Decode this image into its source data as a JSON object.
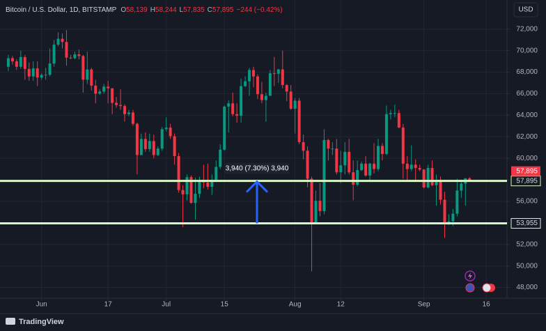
{
  "chart_data": {
    "type": "candlestick",
    "title": "Bitcoin / U.S. Dollar, 1D, BITSTAMP",
    "ohlc_labels": [
      {
        "key": "O",
        "value": "58,139"
      },
      {
        "key": "H",
        "value": "58,244"
      },
      {
        "key": "L",
        "value": "57,835"
      },
      {
        "key": "C",
        "value": "57,895"
      }
    ],
    "change_label": "−244 (−0.42%)",
    "currency": "USD",
    "brand": "TradingView",
    "x": [
      "May 24",
      "May 25",
      "May 26",
      "May 27",
      "May 28",
      "May 29",
      "May 30",
      "May 31",
      "Jun 1",
      "Jun 2",
      "Jun 3",
      "Jun 4",
      "Jun 5",
      "Jun 6",
      "Jun 7",
      "Jun 8",
      "Jun 9",
      "Jun 10",
      "Jun 11",
      "Jun 12",
      "Jun 13",
      "Jun 14",
      "Jun 15",
      "Jun 16",
      "Jun 17",
      "Jun 18",
      "Jun 19",
      "Jun 20",
      "Jun 21",
      "Jun 22",
      "Jun 23",
      "Jun 24",
      "Jun 25",
      "Jun 26",
      "Jun 27",
      "Jun 28",
      "Jun 29",
      "Jun 30",
      "Jul 1",
      "Jul 2",
      "Jul 3",
      "Jul 4",
      "Jul 5",
      "Jul 6",
      "Jul 7",
      "Jul 8",
      "Jul 9",
      "Jul 10",
      "Jul 11",
      "Jul 12",
      "Jul 13",
      "Jul 14",
      "Jul 15",
      "Jul 16",
      "Jul 17",
      "Jul 18",
      "Jul 19",
      "Jul 20",
      "Jul 21",
      "Jul 22",
      "Jul 23",
      "Jul 24",
      "Jul 25",
      "Jul 26",
      "Jul 27",
      "Jul 28",
      "Jul 29",
      "Jul 30",
      "Jul 31",
      "Aug 1",
      "Aug 2",
      "Aug 3",
      "Aug 4",
      "Aug 5",
      "Aug 6",
      "Aug 7",
      "Aug 8",
      "Aug 9",
      "Aug 10",
      "Aug 11",
      "Aug 12",
      "Aug 13",
      "Aug 14",
      "Aug 15",
      "Aug 16",
      "Aug 17",
      "Aug 18",
      "Aug 19",
      "Aug 20",
      "Aug 21",
      "Aug 22",
      "Aug 23",
      "Aug 24",
      "Aug 25",
      "Aug 26",
      "Aug 27",
      "Aug 28",
      "Aug 29",
      "Aug 30",
      "Aug 31",
      "Sep 1",
      "Sep 2",
      "Sep 3",
      "Sep 4",
      "Sep 5",
      "Sep 6",
      "Sep 7",
      "Sep 8",
      "Sep 9",
      "Sep 10",
      "Sep 11",
      "Sep 12"
    ],
    "open": [
      68500,
      69300,
      69000,
      68500,
      69400,
      68300,
      67600,
      68350,
      67500,
      67750,
      67760,
      68800,
      70550,
      71100,
      70800,
      69350,
      69300,
      69650,
      69500,
      67300,
      68250,
      66750,
      66000,
      66200,
      66650,
      66500,
      65150,
      64950,
      64850,
      64100,
      64250,
      63200,
      60300,
      61800,
      60850,
      61600,
      60300,
      60900,
      62700,
      62850,
      62050,
      60200,
      57050,
      56650,
      58250,
      55850,
      56700,
      58000,
      57750,
      57350,
      57900,
      59200,
      60800,
      64800,
      65100,
      64100,
      63950,
      66700,
      67150,
      68200,
      67600,
      65950,
      65400,
      65800,
      67900,
      67850,
      68250,
      66800,
      66200,
      64600,
      65350,
      61500,
      60700,
      58100,
      54000,
      56050,
      55100,
      61700,
      60900,
      60900,
      58700,
      59350,
      60600,
      58700,
      57550,
      58900,
      59500,
      58400,
      59500,
      59000,
      61150,
      60400,
      64100,
      64200,
      64200,
      62850,
      59500,
      59000,
      59400,
      59100,
      58950,
      57300,
      59100,
      57500,
      58000,
      56150,
      53950,
      54150,
      54850,
      57000,
      57650,
      58139
    ],
    "high": [
      69600,
      69500,
      69200,
      70000,
      69600,
      68900,
      69000,
      69000,
      67900,
      68400,
      70200,
      71000,
      71700,
      71600,
      71900,
      69600,
      69900,
      70100,
      69600,
      69900,
      68400,
      67300,
      66400,
      66900,
      67200,
      66500,
      65700,
      66400,
      65000,
      64500,
      64500,
      63300,
      62300,
      62400,
      62300,
      62200,
      61100,
      62900,
      63800,
      63200,
      62300,
      60500,
      57500,
      58500,
      58400,
      58200,
      58300,
      59400,
      59500,
      58500,
      59800,
      61300,
      64900,
      65400,
      66100,
      65100,
      67400,
      67600,
      68400,
      68500,
      67800,
      67100,
      66100,
      68200,
      69400,
      68300,
      70000,
      66900,
      66800,
      65600,
      65600,
      62200,
      61100,
      58300,
      57000,
      57700,
      62700,
      61800,
      61500,
      61800,
      60700,
      61500,
      61800,
      59800,
      59800,
      59700,
      60200,
      59600,
      61400,
      61800,
      61400,
      64900,
      64500,
      65000,
      64500,
      63200,
      60200,
      61200,
      59900,
      59400,
      59000,
      59400,
      59800,
      58500,
      58300,
      56900,
      54800,
      55300,
      58100,
      58000,
      58000,
      58244
    ],
    "low": [
      68100,
      68700,
      68200,
      68300,
      67300,
      67200,
      67200,
      66700,
      67300,
      67300,
      67600,
      68500,
      70400,
      70200,
      68600,
      69200,
      69200,
      69200,
      66100,
      66900,
      66300,
      65100,
      65900,
      66000,
      65100,
      64100,
      64700,
      64500,
      63400,
      63900,
      63000,
      58500,
      60300,
      60600,
      60600,
      60000,
      60200,
      60700,
      62500,
      61800,
      59400,
      56800,
      53600,
      56100,
      55800,
      54300,
      56300,
      57200,
      57100,
      56600,
      57800,
      59000,
      60700,
      62400,
      63900,
      63300,
      63300,
      66600,
      65800,
      66600,
      65500,
      65100,
      63400,
      65800,
      66700,
      67000,
      66500,
      65300,
      64500,
      62300,
      61300,
      59900,
      57300,
      49500,
      54000,
      54600,
      54800,
      59800,
      60300,
      58500,
      57700,
      58500,
      58500,
      56100,
      57400,
      58800,
      58300,
      57800,
      58600,
      58800,
      59800,
      60300,
      63600,
      63800,
      62800,
      58100,
      57900,
      58800,
      57900,
      58800,
      57200,
      57200,
      57400,
      55600,
      55700,
      52600,
      53800,
      53700,
      54600,
      56300,
      55600,
      57835
    ],
    "close": [
      69300,
      69000,
      68500,
      69400,
      68300,
      67600,
      68350,
      67500,
      67750,
      67760,
      68800,
      70550,
      71100,
      70800,
      69350,
      69300,
      69650,
      69500,
      67300,
      68250,
      66750,
      66000,
      66200,
      66650,
      66500,
      65150,
      64950,
      64850,
      64100,
      64250,
      63200,
      60300,
      61800,
      60850,
      61600,
      60300,
      60900,
      62700,
      62850,
      62050,
      60200,
      57050,
      56650,
      58250,
      55850,
      56700,
      58000,
      57750,
      57350,
      57900,
      59200,
      60800,
      64800,
      65100,
      64100,
      63950,
      66700,
      67150,
      68200,
      67600,
      65950,
      65400,
      65800,
      67900,
      67850,
      68250,
      66800,
      66200,
      64600,
      65350,
      61500,
      60700,
      58100,
      54000,
      56050,
      55100,
      61700,
      60900,
      60900,
      58700,
      59350,
      60600,
      58700,
      57550,
      58900,
      59500,
      58400,
      59500,
      59000,
      61150,
      60400,
      64100,
      64200,
      64200,
      62850,
      59500,
      59000,
      59400,
      59100,
      58950,
      57300,
      59100,
      57500,
      58000,
      56150,
      53950,
      54150,
      54850,
      57000,
      57650,
      58139,
      57895
    ],
    "up_color": "#089981",
    "down_color": "#f23645",
    "xlim": [
      "May 22",
      "Sep 21"
    ],
    "xticks": [
      {
        "value": "Jun 1",
        "label": "Jun"
      },
      {
        "value": "Jun 17",
        "label": "17"
      },
      {
        "value": "Jul 1",
        "label": "Jul"
      },
      {
        "value": "Jul 15",
        "label": "15"
      },
      {
        "value": "Aug 1",
        "label": "Aug"
      },
      {
        "value": "Aug 12",
        "label": "12"
      },
      {
        "value": "Sep 1",
        "label": "Sep"
      },
      {
        "value": "Sep 16",
        "label": "16"
      }
    ],
    "ylim": [
      47000,
      74700
    ],
    "yticks": [
      {
        "value": 48000,
        "label": "48,000"
      },
      {
        "value": 50000,
        "label": "50,000"
      },
      {
        "value": 52000,
        "label": "52,000"
      },
      {
        "value": 54000,
        "label": "54,000"
      },
      {
        "value": 56000,
        "label": "56,000"
      },
      {
        "value": 58000,
        "label": "58,000"
      },
      {
        "value": 60000,
        "label": "60,000"
      },
      {
        "value": 62000,
        "label": "62,000"
      },
      {
        "value": 64000,
        "label": "64,000"
      },
      {
        "value": 66000,
        "label": "66,000"
      },
      {
        "value": 68000,
        "label": "68,000"
      },
      {
        "value": 70000,
        "label": "70,000"
      },
      {
        "value": 72000,
        "label": "72,000"
      }
    ],
    "grid": true,
    "levels": [
      {
        "value": 57895,
        "label": "57,895"
      },
      {
        "value": 53955,
        "label": "53,955"
      }
    ],
    "level_color": "#d9f7c9",
    "last_price": {
      "value": 57895,
      "label": "57,895"
    },
    "measure_label": "3,940 (7.30%) 3,940",
    "measure_color": "#2962ff"
  }
}
